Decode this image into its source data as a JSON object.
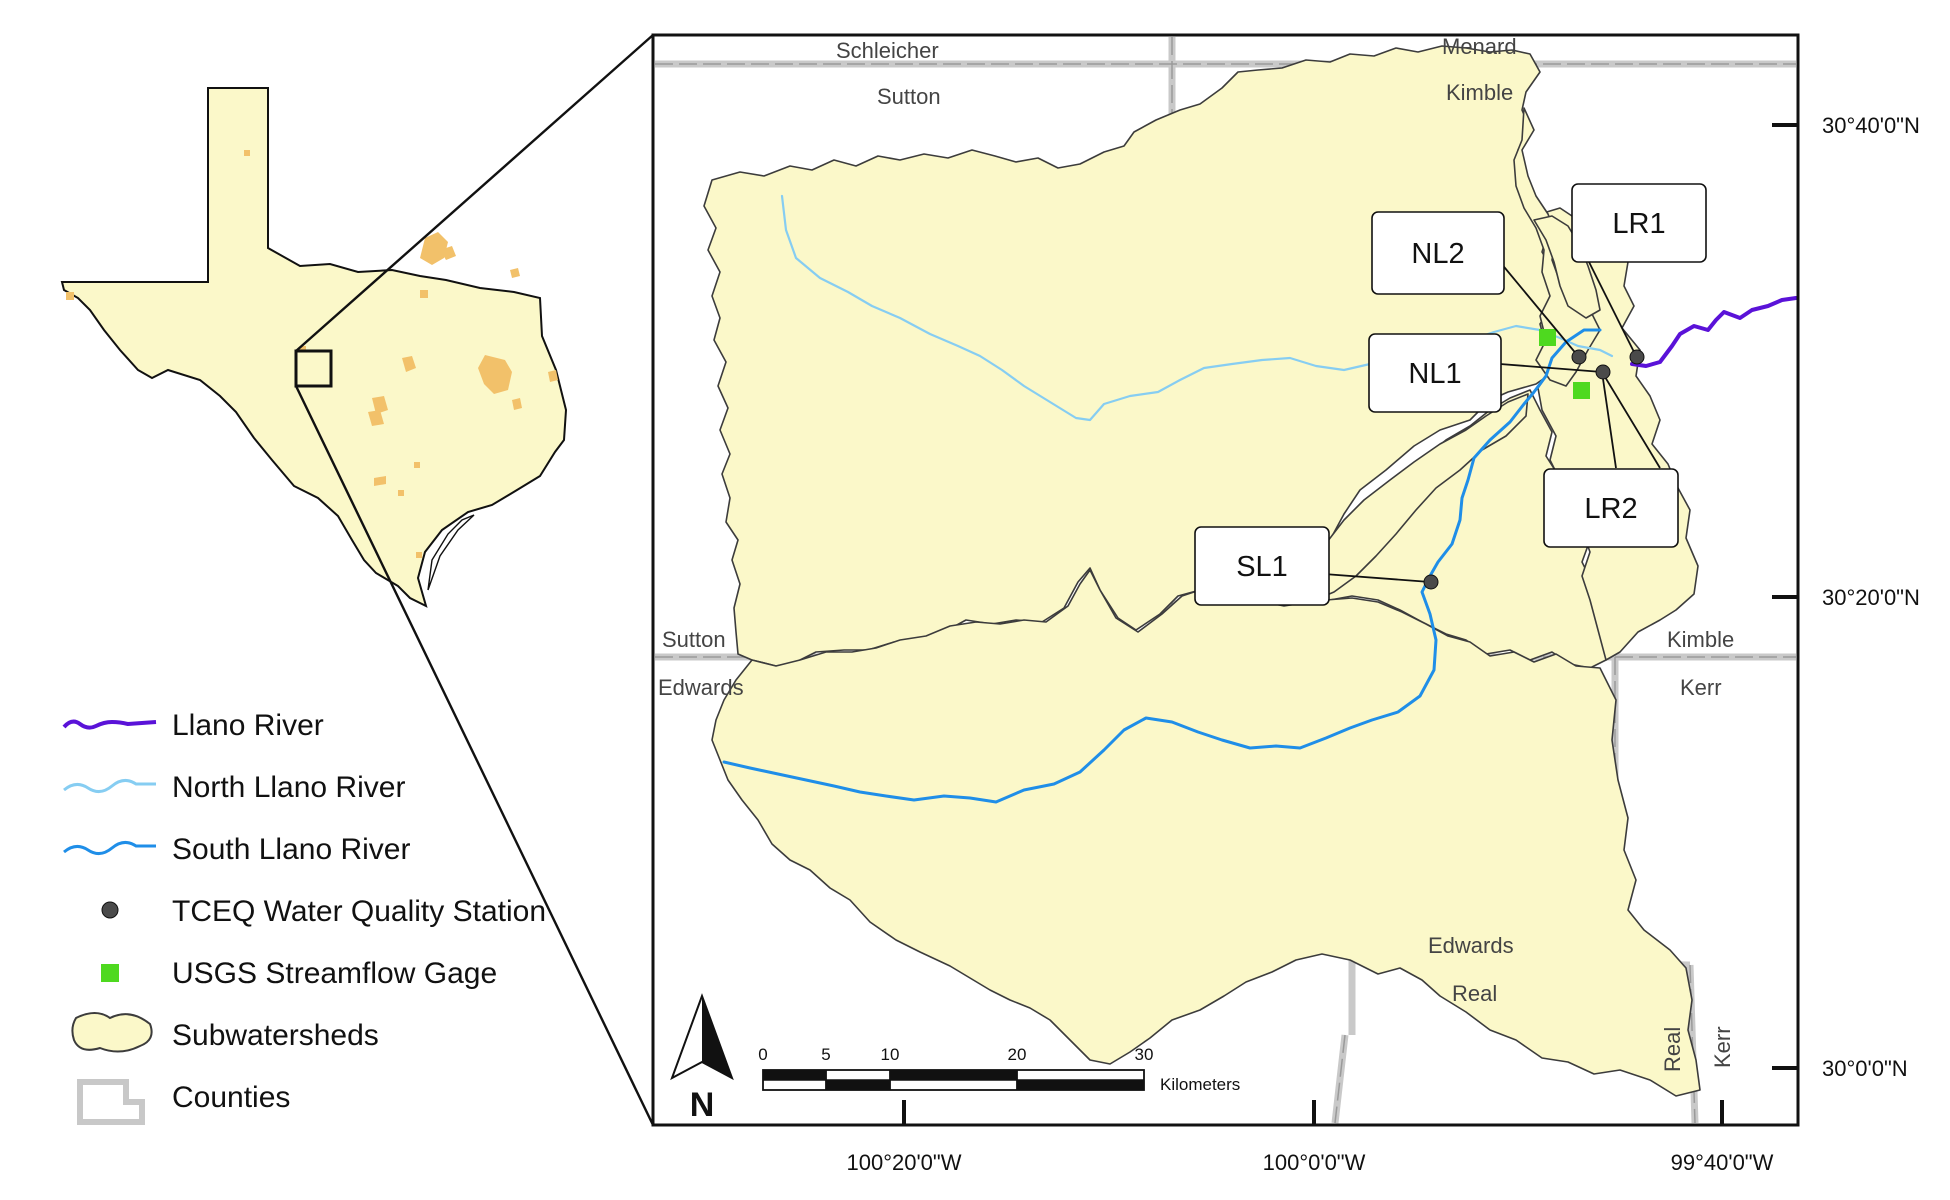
{
  "map": {
    "counties": [
      "Schleicher",
      "Menard",
      "Sutton",
      "Kimble",
      "Sutton",
      "Kimble",
      "Edwards",
      "Kerr",
      "Edwards",
      "Real",
      "Real",
      "Kerr"
    ],
    "stations": [
      {
        "id": "LR1"
      },
      {
        "id": "NL2"
      },
      {
        "id": "NL1"
      },
      {
        "id": "LR2"
      },
      {
        "id": "SL1"
      }
    ],
    "latitude_ticks": [
      "30°40'0\"N",
      "30°20'0\"N",
      "30°0'0\"N"
    ],
    "longitude_ticks": [
      "100°20'0\"W",
      "100°0'0\"W",
      "99°40'0\"W"
    ],
    "scale_bar": {
      "ticks": [
        "0",
        "5",
        "10",
        "20",
        "30"
      ],
      "unit": "Kilometers"
    },
    "north_arrow": "N"
  },
  "legend": {
    "items": [
      {
        "label": "Llano River",
        "icon": "llano-river-line",
        "color": "#5a12d8"
      },
      {
        "label": "North Llano River",
        "icon": "north-llano-river-line",
        "color": "#86cdf2"
      },
      {
        "label": "South Llano River",
        "icon": "south-llano-river-line",
        "color": "#1f8ee8"
      },
      {
        "label": "TCEQ Water Quality Station",
        "icon": "station-dot",
        "color": "#4a4a4a"
      },
      {
        "label": "USGS Streamflow Gage",
        "icon": "gage-square",
        "color": "#4ed91f"
      },
      {
        "label": "Subwatersheds",
        "icon": "subwatershed-swatch",
        "color": "#fbf8c9"
      },
      {
        "label": "Counties",
        "icon": "county-swatch",
        "color": "#c8c8c8"
      }
    ]
  }
}
